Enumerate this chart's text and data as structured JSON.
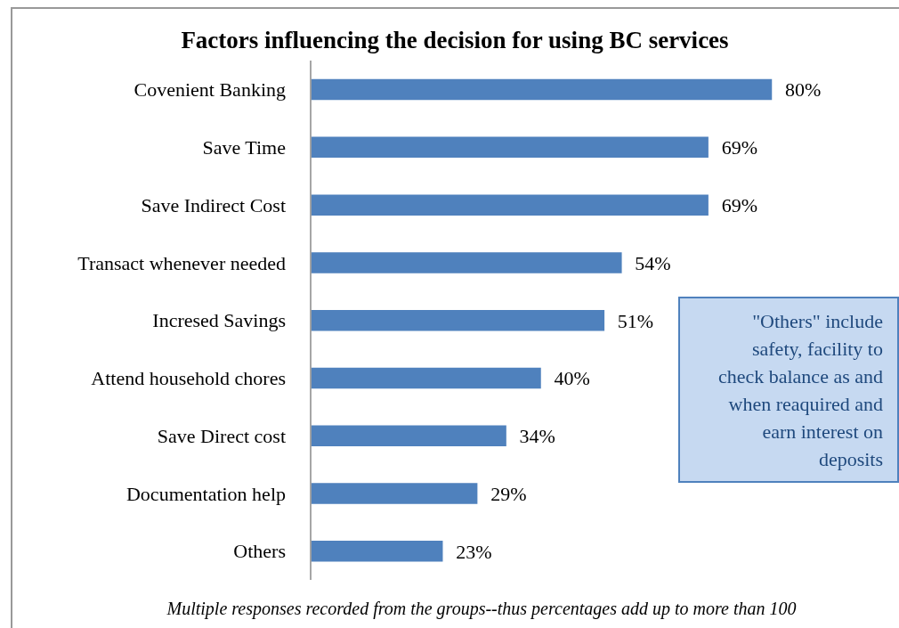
{
  "chart_data": {
    "type": "bar",
    "orientation": "horizontal",
    "title": "Factors influencing the decision for using BC services",
    "categories": [
      "Covenient Banking",
      "Save Time",
      "Save Indirect Cost",
      "Transact whenever needed",
      "Incresed Savings",
      "Attend household chores",
      "Save Direct cost",
      "Documentation help",
      "Others"
    ],
    "values": [
      80,
      69,
      69,
      54,
      51,
      40,
      34,
      29,
      23
    ],
    "value_labels": [
      "80%",
      "69%",
      "69%",
      "54%",
      "51%",
      "40%",
      "34%",
      "29%",
      "23%"
    ],
    "color": "#4f81bd",
    "grid": false,
    "legend": false,
    "annotations": [
      "\"Others\" include safety, facility to check balance as and when reaquired and earn interest on deposits",
      "Multiple responses recorded from the groups--thus percentages add up to more than 100"
    ]
  }
}
